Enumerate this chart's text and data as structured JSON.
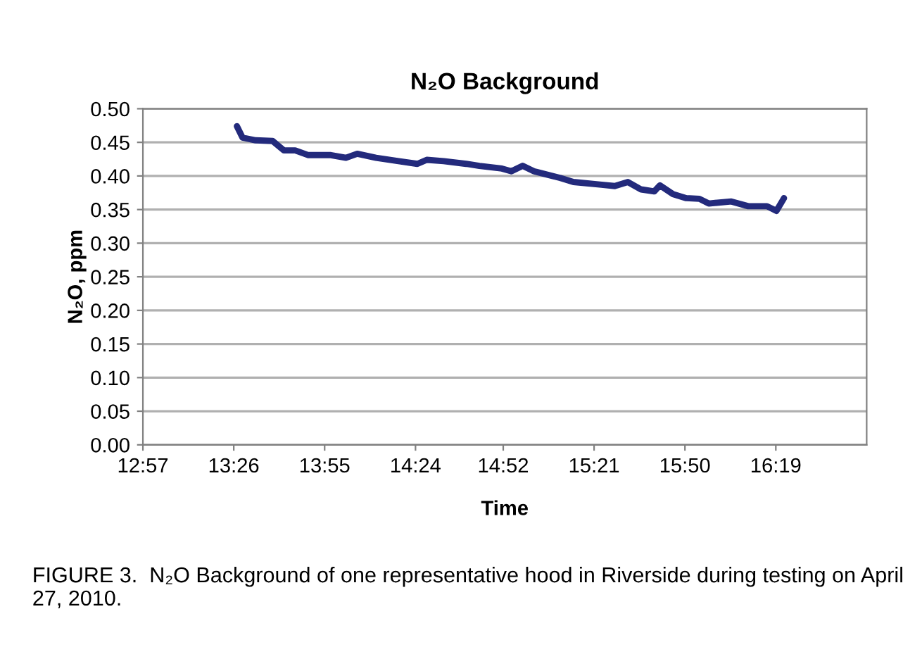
{
  "chart_data": {
    "type": "line",
    "title": "N₂O Background",
    "xlabel": "Time",
    "ylabel": "N₂O, ppm",
    "annotations": [
      "FIGURE 3.  N₂O Background of one representative hood in Riverside during testing on April 27, 2010."
    ],
    "series": [
      {
        "color": "#232a7c",
        "x": [
          13.45,
          13.48,
          13.55,
          13.64,
          13.7,
          13.76,
          13.83,
          13.95,
          14.03,
          14.09,
          14.19,
          14.31,
          14.41,
          14.46,
          14.55,
          14.67,
          14.74,
          14.86,
          14.91,
          14.97,
          15.03,
          15.17,
          15.24,
          15.39,
          15.46,
          15.53,
          15.6,
          15.67,
          15.7,
          15.77,
          15.84,
          15.91,
          15.96,
          16.08,
          16.17,
          16.27,
          16.32,
          16.36
        ],
        "values": [
          0.474,
          0.457,
          0.453,
          0.452,
          0.438,
          0.438,
          0.431,
          0.431,
          0.427,
          0.433,
          0.427,
          0.422,
          0.418,
          0.424,
          0.422,
          0.418,
          0.415,
          0.411,
          0.407,
          0.415,
          0.407,
          0.397,
          0.391,
          0.387,
          0.385,
          0.391,
          0.38,
          0.377,
          0.386,
          0.373,
          0.367,
          0.366,
          0.359,
          0.362,
          0.355,
          0.355,
          0.348,
          0.367
        ]
      }
    ],
    "xlim": [
      12.95,
      16.8
    ],
    "xticks": [
      {
        "value": 12.95,
        "label": "12:57"
      },
      {
        "value": 13.4333,
        "label": "13:26"
      },
      {
        "value": 13.9167,
        "label": "13:55"
      },
      {
        "value": 14.4,
        "label": "14:24"
      },
      {
        "value": 14.8667,
        "label": "14:52"
      },
      {
        "value": 15.35,
        "label": "15:21"
      },
      {
        "value": 15.8333,
        "label": "15:50"
      },
      {
        "value": 16.3167,
        "label": "16:19"
      }
    ],
    "ylim": [
      0,
      0.5
    ],
    "yticks": [
      {
        "value": 0,
        "label": "0.00"
      },
      {
        "value": 0.05,
        "label": "0.05"
      },
      {
        "value": 0.1,
        "label": "0.10"
      },
      {
        "value": 0.15,
        "label": "0.15"
      },
      {
        "value": 0.2,
        "label": "0.20"
      },
      {
        "value": 0.25,
        "label": "0.25"
      },
      {
        "value": 0.3,
        "label": "0.30"
      },
      {
        "value": 0.35,
        "label": "0.35"
      },
      {
        "value": 0.4,
        "label": "0.40"
      },
      {
        "value": 0.45,
        "label": "0.45"
      },
      {
        "value": 0.5,
        "label": "0.50"
      }
    ],
    "grid": "y",
    "marker": "none",
    "line_style": "solid",
    "legend": false
  }
}
